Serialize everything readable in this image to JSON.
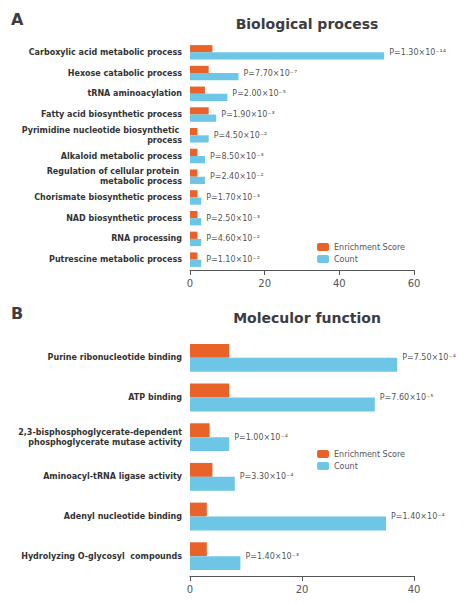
{
  "chart_data": [
    {
      "type": "bar",
      "orientation": "horizontal",
      "title": "Biological process",
      "panel_label": "A",
      "categories": [
        "Carboxylic acid metabolic process",
        "Hexose catabolic process",
        "tRNA aminoacylation",
        "Fatty acid biosynthetic process",
        "Pyrimidine nucleotide biosynthetic process",
        "Alkaloid metabolic process",
        "Regulation of cellular protein metabolic process",
        "Chorismate biosynthetic process",
        "NAD biosynthetic process",
        "RNA processing",
        "Putrescine metabolic process"
      ],
      "series": [
        {
          "name": "Enrichment Score",
          "color": "#E8622A",
          "values": [
            6.0,
            5.0,
            4.0,
            5.0,
            2.0,
            2.0,
            2.0,
            2.0,
            2.0,
            2.0,
            2.0
          ]
        },
        {
          "name": "Count",
          "color": "#6EC6E6",
          "values": [
            52,
            13,
            10,
            7,
            5,
            4,
            4,
            3,
            3,
            3,
            3
          ]
        }
      ],
      "annotations": [
        "P=1.30×10⁻¹⁴",
        "P=7.70×10⁻⁷",
        "P=2.00×10⁻⁵",
        "P=1.90×10⁻³",
        "P=4.50×10⁻²",
        "P=8.50×10⁻³",
        "P=2.40×10⁻²",
        "P=1.70×10⁻³",
        "P=2.50×10⁻³",
        "P=4.60×10⁻²",
        "P=1.10×10⁻²"
      ],
      "xlim": [
        0,
        60
      ],
      "xticks": [
        0,
        20,
        40,
        60
      ],
      "grid": false,
      "legend": "lower right"
    },
    {
      "type": "bar",
      "orientation": "horizontal",
      "title": "Moleculor function",
      "panel_label": "B",
      "categories": [
        "Purine ribonucleotide binding",
        "ATP binding",
        "2,3-bisphosphoglycerate-dependent\nphosphoglycerate mutase activity",
        "Aminoacyl-tRNA ligase activity",
        "Adenyl nucleotide binding",
        "Hydrolyzing O-glycosyl  compounds"
      ],
      "series": [
        {
          "name": "Enrichment Score",
          "color": "#E8622A",
          "values": [
            7.0,
            7.0,
            3.5,
            4.0,
            3.0,
            3.0
          ]
        },
        {
          "name": "Count",
          "color": "#6EC6E6",
          "values": [
            37,
            33,
            7,
            8,
            35,
            9
          ]
        }
      ],
      "annotations": [
        "P=7.50×10⁻⁴",
        "P=7.60×10⁻⁵",
        "P=1.00×10⁻⁴",
        "P=3.30×10⁻⁴",
        "P=1.40×10⁻⁴",
        "P=1.40×10⁻³"
      ],
      "xlim": [
        0,
        40
      ],
      "xticks": [
        0,
        20,
        40
      ],
      "grid": false,
      "legend": "right"
    }
  ]
}
